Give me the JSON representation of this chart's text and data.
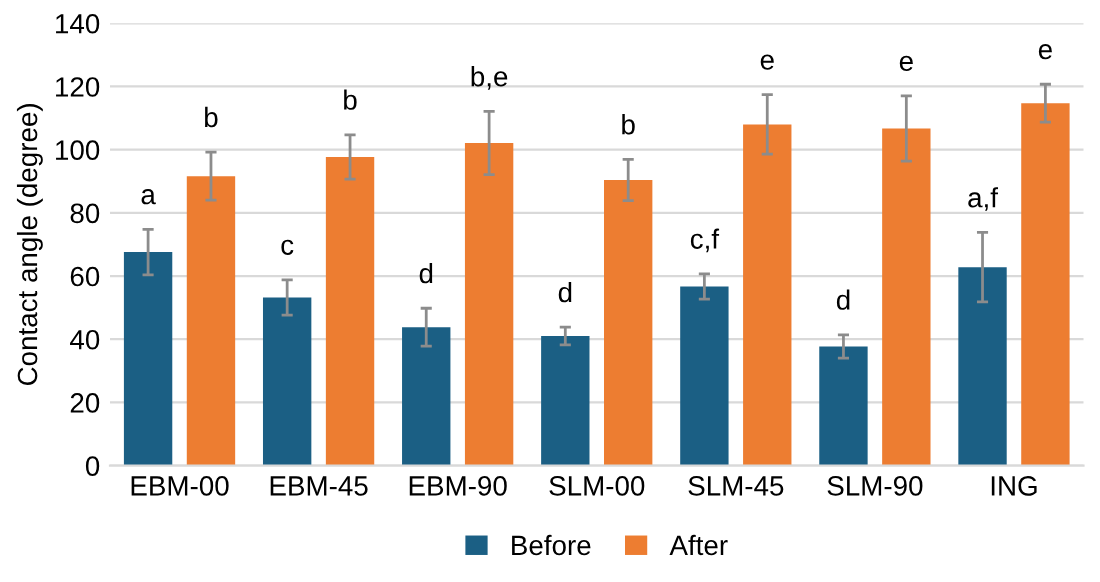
{
  "chart_data": {
    "type": "bar",
    "ylabel": "Contact angle (degree)",
    "categories": [
      "EBM-00",
      "EBM-45",
      "EBM-90",
      "SLM-00",
      "SLM-45",
      "SLM-90",
      "ING"
    ],
    "series": [
      {
        "name": "Before",
        "color": "#1b5f84",
        "values": [
          67.6,
          53.2,
          43.8,
          41.0,
          56.7,
          37.7,
          62.8
        ],
        "errors": [
          7.2,
          5.6,
          6.0,
          2.8,
          4.0,
          3.7,
          11.0
        ],
        "value_labels": [
          "a",
          "c",
          "d",
          "d",
          "c,f",
          "d",
          "a,f"
        ]
      },
      {
        "name": "After",
        "color": "#ed7d31",
        "values": [
          91.6,
          97.7,
          102.1,
          90.4,
          108.0,
          106.7,
          114.7
        ],
        "errors": [
          7.6,
          7.0,
          10.0,
          6.5,
          9.4,
          10.3,
          6.0
        ],
        "value_labels": [
          "b",
          "b",
          "b,e",
          "b",
          "e",
          "e",
          "e"
        ]
      }
    ],
    "ylim": [
      0,
      140
    ],
    "yticks": [
      0,
      20,
      40,
      60,
      80,
      100,
      120,
      140
    ],
    "grid": "y",
    "legend": "bottom"
  }
}
